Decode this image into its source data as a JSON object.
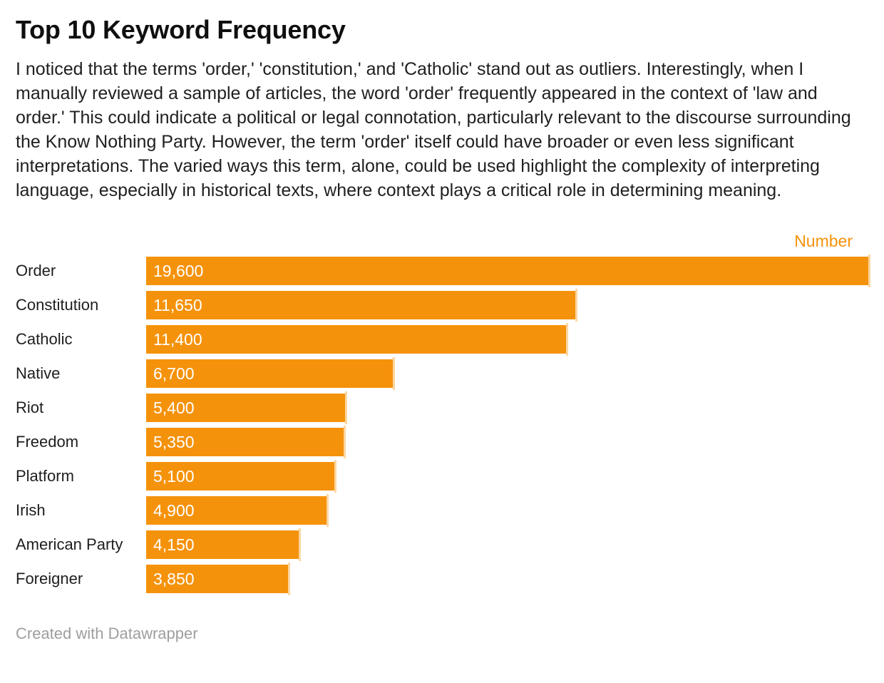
{
  "header": {
    "title": "Top 10 Keyword Frequency",
    "description": "I noticed that the terms 'order,' 'constitution,' and 'Catholic' stand out as outliers. Interestingly, when I manually reviewed a sample of articles, the word 'order' frequently appeared in the context of 'law and order.' This could indicate a political or legal connotation, particularly relevant to the discourse surrounding the Know Nothing Party. However, the term 'order' itself could have broader or even less significant interpretations. The varied ways this term, alone, could be used highlight the complexity of interpreting language, especially in historical texts, where context plays a critical role in determining meaning."
  },
  "chart_data": {
    "type": "bar",
    "orientation": "horizontal",
    "title": "Top 10 Keyword Frequency",
    "series_label": "Number",
    "categories": [
      "Order",
      "Constitution",
      "Catholic",
      "Native",
      "Riot",
      "Freedom",
      "Platform",
      "Irish",
      "American Party",
      "Foreigner"
    ],
    "values": [
      19600,
      11650,
      11400,
      6700,
      5400,
      5350,
      5100,
      4900,
      4150,
      3850
    ],
    "value_labels": [
      "19,600",
      "11,650",
      "11,400",
      "6,700",
      "5,400",
      "5,350",
      "5,100",
      "4,900",
      "4,150",
      "3,850"
    ],
    "xlim": [
      0,
      19600
    ],
    "grid": false,
    "legend_position": "top-right",
    "bar_color": "#f5920b",
    "bar_end_color": "#fcd7a0",
    "value_label_color": "#ffffff",
    "header_label_color": "#f5920b"
  },
  "footer": {
    "credit": "Created with Datawrapper"
  }
}
